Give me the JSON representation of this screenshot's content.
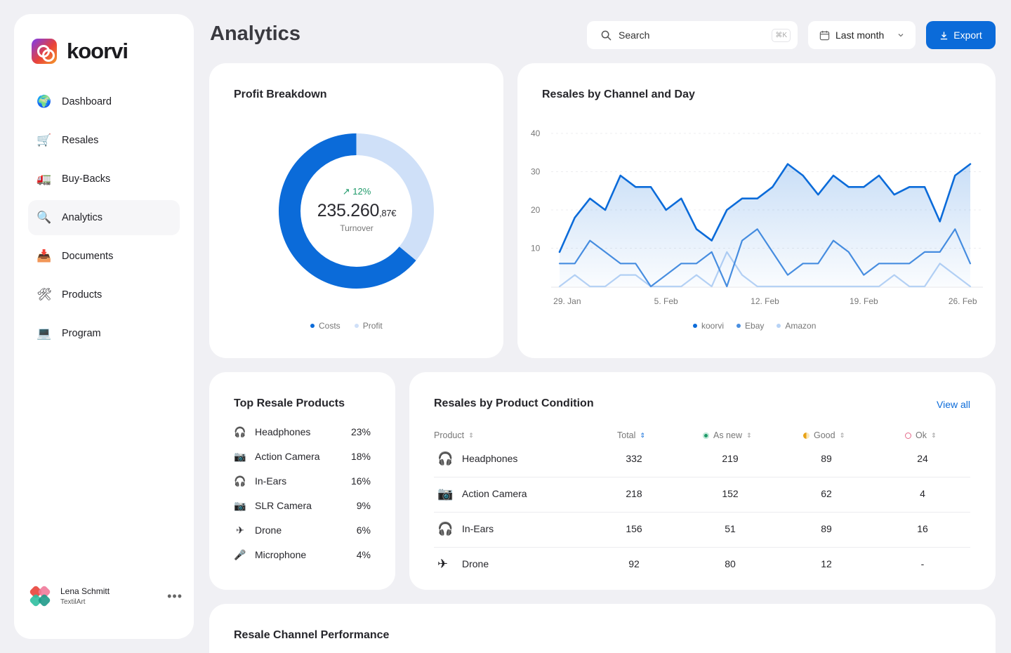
{
  "app": {
    "brand": "koorvi"
  },
  "sidebar": {
    "items": [
      {
        "label": "Dashboard",
        "icon": "globe-icon",
        "glyph": "🌍"
      },
      {
        "label": "Resales",
        "icon": "cart-icon",
        "glyph": "🛒"
      },
      {
        "label": "Buy-Backs",
        "icon": "truck-icon",
        "glyph": "🚛"
      },
      {
        "label": "Analytics",
        "icon": "magnifier-icon",
        "glyph": "🔍"
      },
      {
        "label": "Documents",
        "icon": "documents-icon",
        "glyph": "📥"
      },
      {
        "label": "Products",
        "icon": "tools-icon",
        "glyph": "🛠"
      },
      {
        "label": "Program",
        "icon": "laptop-icon",
        "glyph": "💻"
      }
    ],
    "active": "Analytics",
    "user": {
      "name": "Lena Schmitt",
      "org": "TextilArt",
      "menu": "•••"
    }
  },
  "header": {
    "title": "Analytics",
    "search": {
      "placeholder": "Search",
      "shortcut": "⌘K"
    },
    "period": "Last month",
    "export_label": "Export"
  },
  "profit": {
    "title": "Profit Breakdown",
    "trend": "↗ 12%",
    "turnover_main": "235.260",
    "turnover_cents": ",87€",
    "turnover_label": "Turnover",
    "legend": [
      "Costs",
      "Profit"
    ],
    "colors": {
      "costs": "#0b6bd9",
      "profit": "#cfe0f8"
    },
    "costs_share": 0.64
  },
  "chart_data": {
    "type": "line",
    "title": "Resales by Channel and Day",
    "ylim": [
      0,
      40
    ],
    "yticks": [
      10,
      20,
      30,
      40
    ],
    "xtick_labels": [
      "29. Jan",
      "5. Feb",
      "12. Feb",
      "19. Feb",
      "26. Feb"
    ],
    "xtick_index": [
      0.5,
      7,
      13.5,
      20,
      26.5
    ],
    "series": [
      {
        "name": "koorvi",
        "color": "#0b6bd9",
        "area": true,
        "values": [
          9,
          18,
          23,
          20,
          29,
          26,
          26,
          20,
          23,
          15,
          12,
          20,
          23,
          23,
          26,
          32,
          29,
          24,
          29,
          26,
          26,
          29,
          24,
          26,
          26,
          17,
          29,
          32
        ]
      },
      {
        "name": "Ebay",
        "color": "#4a8fe0",
        "area": false,
        "values": [
          6,
          6,
          12,
          9,
          6,
          6,
          0,
          3,
          6,
          6,
          9,
          0,
          12,
          15,
          9,
          3,
          6,
          6,
          12,
          9,
          3,
          6,
          6,
          6,
          9,
          9,
          15,
          6
        ]
      },
      {
        "name": "Amazon",
        "color": "#b8d3f5",
        "area": false,
        "values": [
          0,
          3,
          0,
          0,
          3,
          3,
          0,
          0,
          0,
          3,
          0,
          9,
          3,
          0,
          0,
          0,
          0,
          0,
          0,
          0,
          0,
          0,
          3,
          0,
          0,
          6,
          3,
          0
        ]
      }
    ]
  },
  "top_products": {
    "title": "Top Resale Products",
    "items": [
      {
        "name": "Headphones",
        "pct": "23%",
        "glyph": "🎧",
        "icon": "headphones-icon"
      },
      {
        "name": "Action Camera",
        "pct": "18%",
        "glyph": "📷",
        "icon": "action-camera-icon"
      },
      {
        "name": "In-Ears",
        "pct": "16%",
        "glyph": "🎧",
        "icon": "in-ears-icon"
      },
      {
        "name": "SLR Camera",
        "pct": "9%",
        "glyph": "📷",
        "icon": "slr-camera-icon"
      },
      {
        "name": "Drone",
        "pct": "6%",
        "glyph": "✈",
        "icon": "drone-icon"
      },
      {
        "name": "Microphone",
        "pct": "4%",
        "glyph": "🎤",
        "icon": "microphone-icon"
      }
    ]
  },
  "condition": {
    "title": "Resales by Product Condition",
    "view_all": "View all",
    "headers": {
      "product": "Product",
      "total": "Total",
      "as_new": "As new",
      "good": "Good",
      "ok": "Ok"
    },
    "status_colors": {
      "as_new": "#1f9a6a",
      "good": "#e8a317",
      "ok": "#e56a8a"
    },
    "rows": [
      {
        "product": "Headphones",
        "glyph": "🎧",
        "total": "332",
        "as_new": "219",
        "good": "89",
        "ok": "24"
      },
      {
        "product": "Action Camera",
        "glyph": "📷",
        "total": "218",
        "as_new": "152",
        "good": "62",
        "ok": "4"
      },
      {
        "product": "In-Ears",
        "glyph": "🎧",
        "total": "156",
        "as_new": "51",
        "good": "89",
        "ok": "16"
      },
      {
        "product": "Drone",
        "glyph": "✈",
        "total": "92",
        "as_new": "80",
        "good": "12",
        "ok": "-"
      }
    ]
  },
  "channel_perf": {
    "title": "Resale Channel Performance"
  }
}
